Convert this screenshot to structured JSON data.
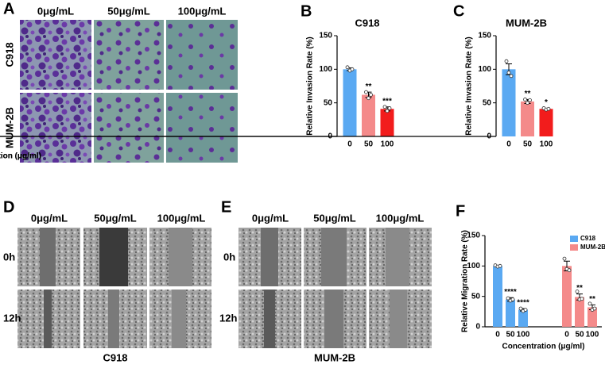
{
  "panels": {
    "A": {
      "letter": "A",
      "columns": [
        "0μg/mL",
        "50μg/mL",
        "100μg/mL"
      ],
      "rows": [
        "C918",
        "MUM-2B"
      ]
    },
    "D": {
      "letter": "D",
      "columns": [
        "0μg/mL",
        "50μg/mL",
        "100μg/mL"
      ],
      "rows": [
        "0h",
        "12h"
      ],
      "caption": "C918"
    },
    "E": {
      "letter": "E",
      "columns": [
        "0μg/mL",
        "50μg/mL",
        "100μg/mL"
      ],
      "rows": [
        "0h",
        "12h"
      ],
      "caption": "MUM-2B"
    }
  },
  "chart_data": [
    {
      "type": "bar",
      "panel": "B",
      "title": "C918",
      "y_label": "Relative Invasion Rate (%)",
      "x_label": "Concentration (μg/ml)",
      "categories": [
        "0",
        "50",
        "100"
      ],
      "values": [
        100,
        62,
        41
      ],
      "errors": [
        2,
        4,
        3
      ],
      "points": [
        [
          103,
          98,
          100
        ],
        [
          66,
          57,
          62
        ],
        [
          44,
          38,
          42
        ]
      ],
      "annotations": [
        null,
        "**",
        "***"
      ],
      "colors": [
        "#5aa9f2",
        "#f48a8a",
        "#f21c1c"
      ],
      "ylim": [
        0,
        150
      ],
      "yticks": [
        0,
        50,
        100,
        150
      ]
    },
    {
      "type": "bar",
      "panel": "C",
      "title": "MUM-2B",
      "y_label": "Relative Invasion Rate (%)",
      "x_label": "Concentration (μg/ml)",
      "categories": [
        "0",
        "50",
        "100"
      ],
      "values": [
        100,
        52,
        41
      ],
      "errors": [
        8,
        3,
        1
      ],
      "points": [
        [
          112,
          95,
          90
        ],
        [
          55,
          50,
          54
        ],
        [
          42,
          40,
          41
        ]
      ],
      "annotations": [
        null,
        "**",
        "*"
      ],
      "colors": [
        "#5aa9f2",
        "#f48a8a",
        "#f21c1c"
      ],
      "ylim": [
        0,
        150
      ],
      "yticks": [
        0,
        50,
        100,
        150
      ]
    },
    {
      "type": "grouped_bar",
      "panel": "F",
      "y_label": "Relative Migration Rate (%)",
      "x_label": "Concentration (μg/ml)",
      "categories": [
        "0",
        "50",
        "100"
      ],
      "legend": "top-right",
      "series": [
        {
          "name": "C918",
          "color": "#5aa9f2",
          "values": [
            100,
            45,
            28
          ],
          "errors": [
            1,
            3,
            2
          ],
          "points": [
            [
              101,
              99,
              100
            ],
            [
              47,
              43,
              45
            ],
            [
              30,
              26,
              28
            ]
          ],
          "annotations": [
            null,
            "****",
            "****"
          ]
        },
        {
          "name": "MUM-2B",
          "color": "#f48a8a",
          "values": [
            100,
            49,
            32
          ],
          "errors": [
            8,
            5,
            4
          ],
          "points": [
            [
              112,
              95,
              93
            ],
            [
              58,
              45,
              46
            ],
            [
              38,
              28,
              30
            ]
          ],
          "annotations": [
            null,
            "**",
            "**"
          ]
        }
      ],
      "ylim": [
        0,
        150
      ],
      "yticks": [
        0,
        50,
        100,
        150
      ]
    }
  ]
}
